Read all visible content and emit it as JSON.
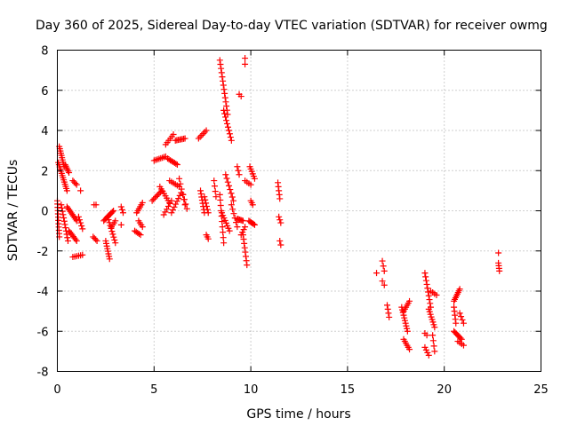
{
  "chart_data": {
    "type": "scatter",
    "title": "Day 360 of 2025, Sidereal Day-to-day VTEC variation (SDTVAR) for receiver owmg",
    "xlabel": "GPS time / hours",
    "ylabel": "SDTVAR / TECUs",
    "xlim": [
      0,
      25
    ],
    "ylim": [
      -8,
      8
    ],
    "xticks": [
      0,
      5,
      10,
      15,
      20,
      25
    ],
    "yticks": [
      -8,
      -6,
      -4,
      -2,
      0,
      2,
      4,
      6,
      8
    ],
    "grid": true,
    "marker": "plus",
    "color": "#ff0000",
    "series": [
      {
        "name": "SDTVAR",
        "segments": [
          {
            "x0": 0.0,
            "y0": 0.5,
            "x1": 0.1,
            "y1": -1.3,
            "n": 12
          },
          {
            "x0": 0.05,
            "y0": 2.4,
            "x1": 0.5,
            "y1": 1.0,
            "n": 14
          },
          {
            "x0": 0.1,
            "y0": 3.2,
            "x1": 0.35,
            "y1": 2.2,
            "n": 10
          },
          {
            "x0": 0.2,
            "y0": 0.3,
            "x1": 0.55,
            "y1": -1.5,
            "n": 12
          },
          {
            "x0": 0.4,
            "y0": 2.3,
            "x1": 0.6,
            "y1": 1.9,
            "n": 6
          },
          {
            "x0": 0.5,
            "y0": 0.2,
            "x1": 1.0,
            "y1": -0.5,
            "n": 10
          },
          {
            "x0": 0.6,
            "y0": -1.0,
            "x1": 1.0,
            "y1": -1.5,
            "n": 8
          },
          {
            "x0": 0.8,
            "y0": 1.5,
            "x1": 1.0,
            "y1": 1.3,
            "n": 4
          },
          {
            "x0": 0.8,
            "y0": -2.3,
            "x1": 1.3,
            "y1": -2.2,
            "n": 6
          },
          {
            "x0": 1.1,
            "y0": -0.3,
            "x1": 1.3,
            "y1": -0.9,
            "n": 5
          },
          {
            "x0": 1.2,
            "y0": 1.0,
            "x1": 1.2,
            "y1": 1.0,
            "n": 1
          },
          {
            "x0": 1.9,
            "y0": 0.3,
            "x1": 2.0,
            "y1": 0.3,
            "n": 2
          },
          {
            "x0": 1.85,
            "y0": -1.3,
            "x1": 2.05,
            "y1": -1.5,
            "n": 4
          },
          {
            "x0": 2.4,
            "y0": -0.5,
            "x1": 2.9,
            "y1": 0.0,
            "n": 10
          },
          {
            "x0": 2.5,
            "y0": -1.5,
            "x1": 2.7,
            "y1": -2.4,
            "n": 8
          },
          {
            "x0": 2.6,
            "y0": -0.3,
            "x1": 3.0,
            "y1": -1.6,
            "n": 10
          },
          {
            "x0": 2.8,
            "y0": -0.8,
            "x1": 3.0,
            "y1": -0.5,
            "n": 4
          },
          {
            "x0": 3.3,
            "y0": 0.2,
            "x1": 3.4,
            "y1": -0.1,
            "n": 3
          },
          {
            "x0": 3.3,
            "y0": -0.7,
            "x1": 3.3,
            "y1": -0.7,
            "n": 1
          },
          {
            "x0": 4.0,
            "y0": -1.0,
            "x1": 4.3,
            "y1": -1.2,
            "n": 5
          },
          {
            "x0": 4.1,
            "y0": -0.1,
            "x1": 4.4,
            "y1": 0.4,
            "n": 6
          },
          {
            "x0": 4.2,
            "y0": -0.5,
            "x1": 4.4,
            "y1": -0.8,
            "n": 4
          },
          {
            "x0": 4.9,
            "y0": 0.5,
            "x1": 5.4,
            "y1": 1.0,
            "n": 8
          },
          {
            "x0": 5.0,
            "y0": 2.5,
            "x1": 5.6,
            "y1": 2.7,
            "n": 8
          },
          {
            "x0": 5.3,
            "y0": 1.2,
            "x1": 5.8,
            "y1": 0.4,
            "n": 8
          },
          {
            "x0": 5.5,
            "y0": -0.2,
            "x1": 5.9,
            "y1": 0.5,
            "n": 6
          },
          {
            "x0": 5.6,
            "y0": 3.3,
            "x1": 6.0,
            "y1": 3.8,
            "n": 6
          },
          {
            "x0": 5.7,
            "y0": 2.6,
            "x1": 6.2,
            "y1": 2.3,
            "n": 8
          },
          {
            "x0": 5.8,
            "y0": 1.5,
            "x1": 6.3,
            "y1": 1.2,
            "n": 6
          },
          {
            "x0": 5.9,
            "y0": -0.1,
            "x1": 6.4,
            "y1": 0.9,
            "n": 8
          },
          {
            "x0": 6.1,
            "y0": 3.5,
            "x1": 6.6,
            "y1": 3.6,
            "n": 8
          },
          {
            "x0": 6.3,
            "y0": 1.6,
            "x1": 6.6,
            "y1": 0.3,
            "n": 6
          },
          {
            "x0": 6.5,
            "y0": 0.8,
            "x1": 6.7,
            "y1": 0.1,
            "n": 4
          },
          {
            "x0": 7.3,
            "y0": 3.6,
            "x1": 7.7,
            "y1": 4.0,
            "n": 6
          },
          {
            "x0": 7.4,
            "y0": 1.0,
            "x1": 7.6,
            "y1": -0.1,
            "n": 8
          },
          {
            "x0": 7.6,
            "y0": 0.7,
            "x1": 7.8,
            "y1": -0.1,
            "n": 6
          },
          {
            "x0": 7.7,
            "y0": -1.2,
            "x1": 7.8,
            "y1": -1.4,
            "n": 3
          },
          {
            "x0": 8.1,
            "y0": 1.5,
            "x1": 8.2,
            "y1": 0.7,
            "n": 4
          },
          {
            "x0": 8.4,
            "y0": 7.5,
            "x1": 8.8,
            "y1": 4.8,
            "n": 14
          },
          {
            "x0": 8.6,
            "y0": 5.0,
            "x1": 9.0,
            "y1": 3.5,
            "n": 10
          },
          {
            "x0": 8.4,
            "y0": 0.8,
            "x1": 8.6,
            "y1": -1.6,
            "n": 10
          },
          {
            "x0": 8.5,
            "y0": -0.1,
            "x1": 8.9,
            "y1": -1.0,
            "n": 8
          },
          {
            "x0": 8.7,
            "y0": 1.8,
            "x1": 9.1,
            "y1": 0.5,
            "n": 8
          },
          {
            "x0": 9.0,
            "y0": 0.3,
            "x1": 9.3,
            "y1": -0.8,
            "n": 6
          },
          {
            "x0": 9.3,
            "y0": -0.4,
            "x1": 9.6,
            "y1": -0.5,
            "n": 6
          },
          {
            "x0": 9.3,
            "y0": 2.2,
            "x1": 9.4,
            "y1": 1.8,
            "n": 3
          },
          {
            "x0": 9.4,
            "y0": 5.8,
            "x1": 9.5,
            "y1": 5.7,
            "n": 2
          },
          {
            "x0": 9.5,
            "y0": -1.2,
            "x1": 9.7,
            "y1": -0.8,
            "n": 4
          },
          {
            "x0": 9.6,
            "y0": -1.2,
            "x1": 9.8,
            "y1": -2.7,
            "n": 8
          },
          {
            "x0": 9.7,
            "y0": 7.6,
            "x1": 9.7,
            "y1": 7.3,
            "n": 2
          },
          {
            "x0": 9.7,
            "y0": 1.5,
            "x1": 10.0,
            "y1": 1.3,
            "n": 4
          },
          {
            "x0": 9.9,
            "y0": -0.5,
            "x1": 10.2,
            "y1": -0.7,
            "n": 6
          },
          {
            "x0": 9.95,
            "y0": 2.2,
            "x1": 10.2,
            "y1": 1.6,
            "n": 6
          },
          {
            "x0": 10.0,
            "y0": 0.5,
            "x1": 10.1,
            "y1": 0.3,
            "n": 3
          },
          {
            "x0": 11.4,
            "y0": 1.4,
            "x1": 11.5,
            "y1": 0.6,
            "n": 5
          },
          {
            "x0": 11.45,
            "y0": -0.3,
            "x1": 11.55,
            "y1": -0.6,
            "n": 3
          },
          {
            "x0": 11.5,
            "y0": -1.5,
            "x1": 11.55,
            "y1": -1.7,
            "n": 2
          },
          {
            "x0": 16.5,
            "y0": -3.1,
            "x1": 16.55,
            "y1": -3.1,
            "n": 1
          },
          {
            "x0": 16.8,
            "y0": -2.5,
            "x1": 16.9,
            "y1": -3.0,
            "n": 3
          },
          {
            "x0": 16.8,
            "y0": -3.5,
            "x1": 16.9,
            "y1": -3.7,
            "n": 2
          },
          {
            "x0": 17.05,
            "y0": -4.7,
            "x1": 17.15,
            "y1": -5.3,
            "n": 4
          },
          {
            "x0": 17.8,
            "y0": -4.8,
            "x1": 18.1,
            "y1": -6.0,
            "n": 10
          },
          {
            "x0": 17.9,
            "y0": -5.0,
            "x1": 18.2,
            "y1": -4.5,
            "n": 6
          },
          {
            "x0": 17.9,
            "y0": -6.4,
            "x1": 18.2,
            "y1": -6.9,
            "n": 6
          },
          {
            "x0": 19.0,
            "y0": -3.1,
            "x1": 19.3,
            "y1": -4.8,
            "n": 10
          },
          {
            "x0": 19.0,
            "y0": -6.8,
            "x1": 19.2,
            "y1": -7.2,
            "n": 4
          },
          {
            "x0": 19.0,
            "y0": -6.1,
            "x1": 19.1,
            "y1": -6.2,
            "n": 2
          },
          {
            "x0": 19.2,
            "y0": -4.9,
            "x1": 19.5,
            "y1": -5.8,
            "n": 8
          },
          {
            "x0": 19.3,
            "y0": -4.0,
            "x1": 19.6,
            "y1": -4.2,
            "n": 4
          },
          {
            "x0": 19.4,
            "y0": -6.2,
            "x1": 19.5,
            "y1": -7.0,
            "n": 4
          },
          {
            "x0": 20.5,
            "y0": -4.5,
            "x1": 20.8,
            "y1": -3.9,
            "n": 8
          },
          {
            "x0": 20.5,
            "y0": -4.8,
            "x1": 20.6,
            "y1": -5.6,
            "n": 5
          },
          {
            "x0": 20.5,
            "y0": -6.0,
            "x1": 20.9,
            "y1": -6.4,
            "n": 8
          },
          {
            "x0": 20.7,
            "y0": -6.5,
            "x1": 21.0,
            "y1": -6.7,
            "n": 4
          },
          {
            "x0": 20.8,
            "y0": -5.1,
            "x1": 21.0,
            "y1": -5.6,
            "n": 4
          },
          {
            "x0": 22.8,
            "y0": -2.1,
            "x1": 22.8,
            "y1": -2.1,
            "n": 1
          },
          {
            "x0": 22.8,
            "y0": -2.6,
            "x1": 22.85,
            "y1": -3.0,
            "n": 4
          }
        ]
      }
    ]
  }
}
